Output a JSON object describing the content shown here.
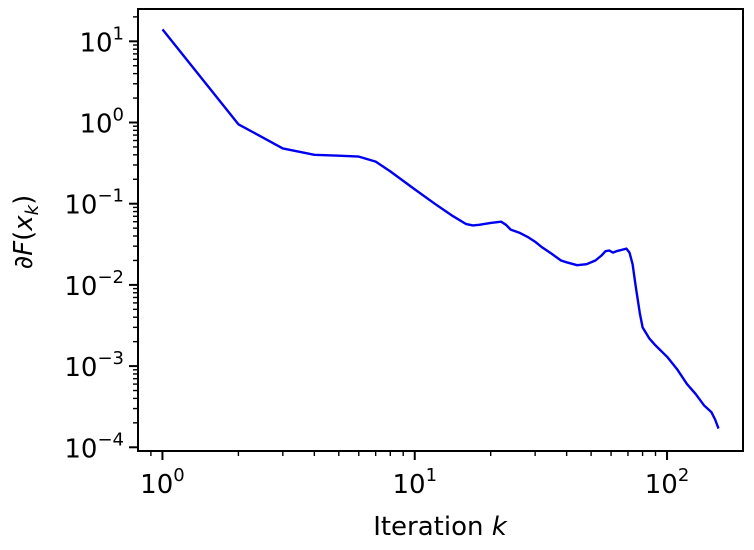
{
  "chart_data": {
    "type": "line",
    "title": "",
    "xlabel": "Iteration",
    "xlabel_var": "k",
    "ylabel_parts": [
      "∂",
      "F",
      "(",
      "x",
      "k",
      ")"
    ],
    "xscale": "log",
    "yscale": "log",
    "xlim": [
      0.8,
      200
    ],
    "ylim": [
      9e-05,
      25
    ],
    "grid": false,
    "legend": "none",
    "x_ticks": [
      {
        "value": 1,
        "base": "10",
        "exp": "0"
      },
      {
        "value": 10,
        "base": "10",
        "exp": "1"
      },
      {
        "value": 100,
        "base": "10",
        "exp": "2"
      }
    ],
    "y_ticks": [
      {
        "value": 0.0001,
        "base": "10",
        "exp": "−4"
      },
      {
        "value": 0.001,
        "base": "10",
        "exp": "−3"
      },
      {
        "value": 0.01,
        "base": "10",
        "exp": "−2"
      },
      {
        "value": 0.1,
        "base": "10",
        "exp": "−1"
      },
      {
        "value": 1,
        "base": "10",
        "exp": "0"
      },
      {
        "value": 10,
        "base": "10",
        "exp": "1"
      }
    ],
    "series": [
      {
        "color": "#0000ee",
        "x": [
          1,
          2,
          3,
          4,
          5,
          6,
          7,
          8,
          10,
          12,
          14,
          16,
          17,
          18,
          20,
          22,
          23,
          24,
          26,
          28,
          30,
          32,
          35,
          38,
          40,
          44,
          48,
          52,
          55,
          57,
          59,
          61,
          63,
          66,
          69,
          71,
          73,
          75,
          78,
          80,
          85,
          90,
          100,
          110,
          120,
          130,
          140,
          150,
          155,
          160
        ],
        "y": [
          14,
          0.95,
          0.48,
          0.4,
          0.39,
          0.38,
          0.33,
          0.25,
          0.15,
          0.1,
          0.072,
          0.056,
          0.054,
          0.055,
          0.058,
          0.06,
          0.055,
          0.048,
          0.044,
          0.039,
          0.034,
          0.029,
          0.024,
          0.02,
          0.019,
          0.0175,
          0.018,
          0.02,
          0.023,
          0.026,
          0.0265,
          0.025,
          0.026,
          0.027,
          0.028,
          0.025,
          0.018,
          0.01,
          0.0045,
          0.003,
          0.0022,
          0.0018,
          0.0013,
          0.0009,
          0.0006,
          0.00045,
          0.00033,
          0.00027,
          0.00022,
          0.00017
        ]
      }
    ]
  }
}
